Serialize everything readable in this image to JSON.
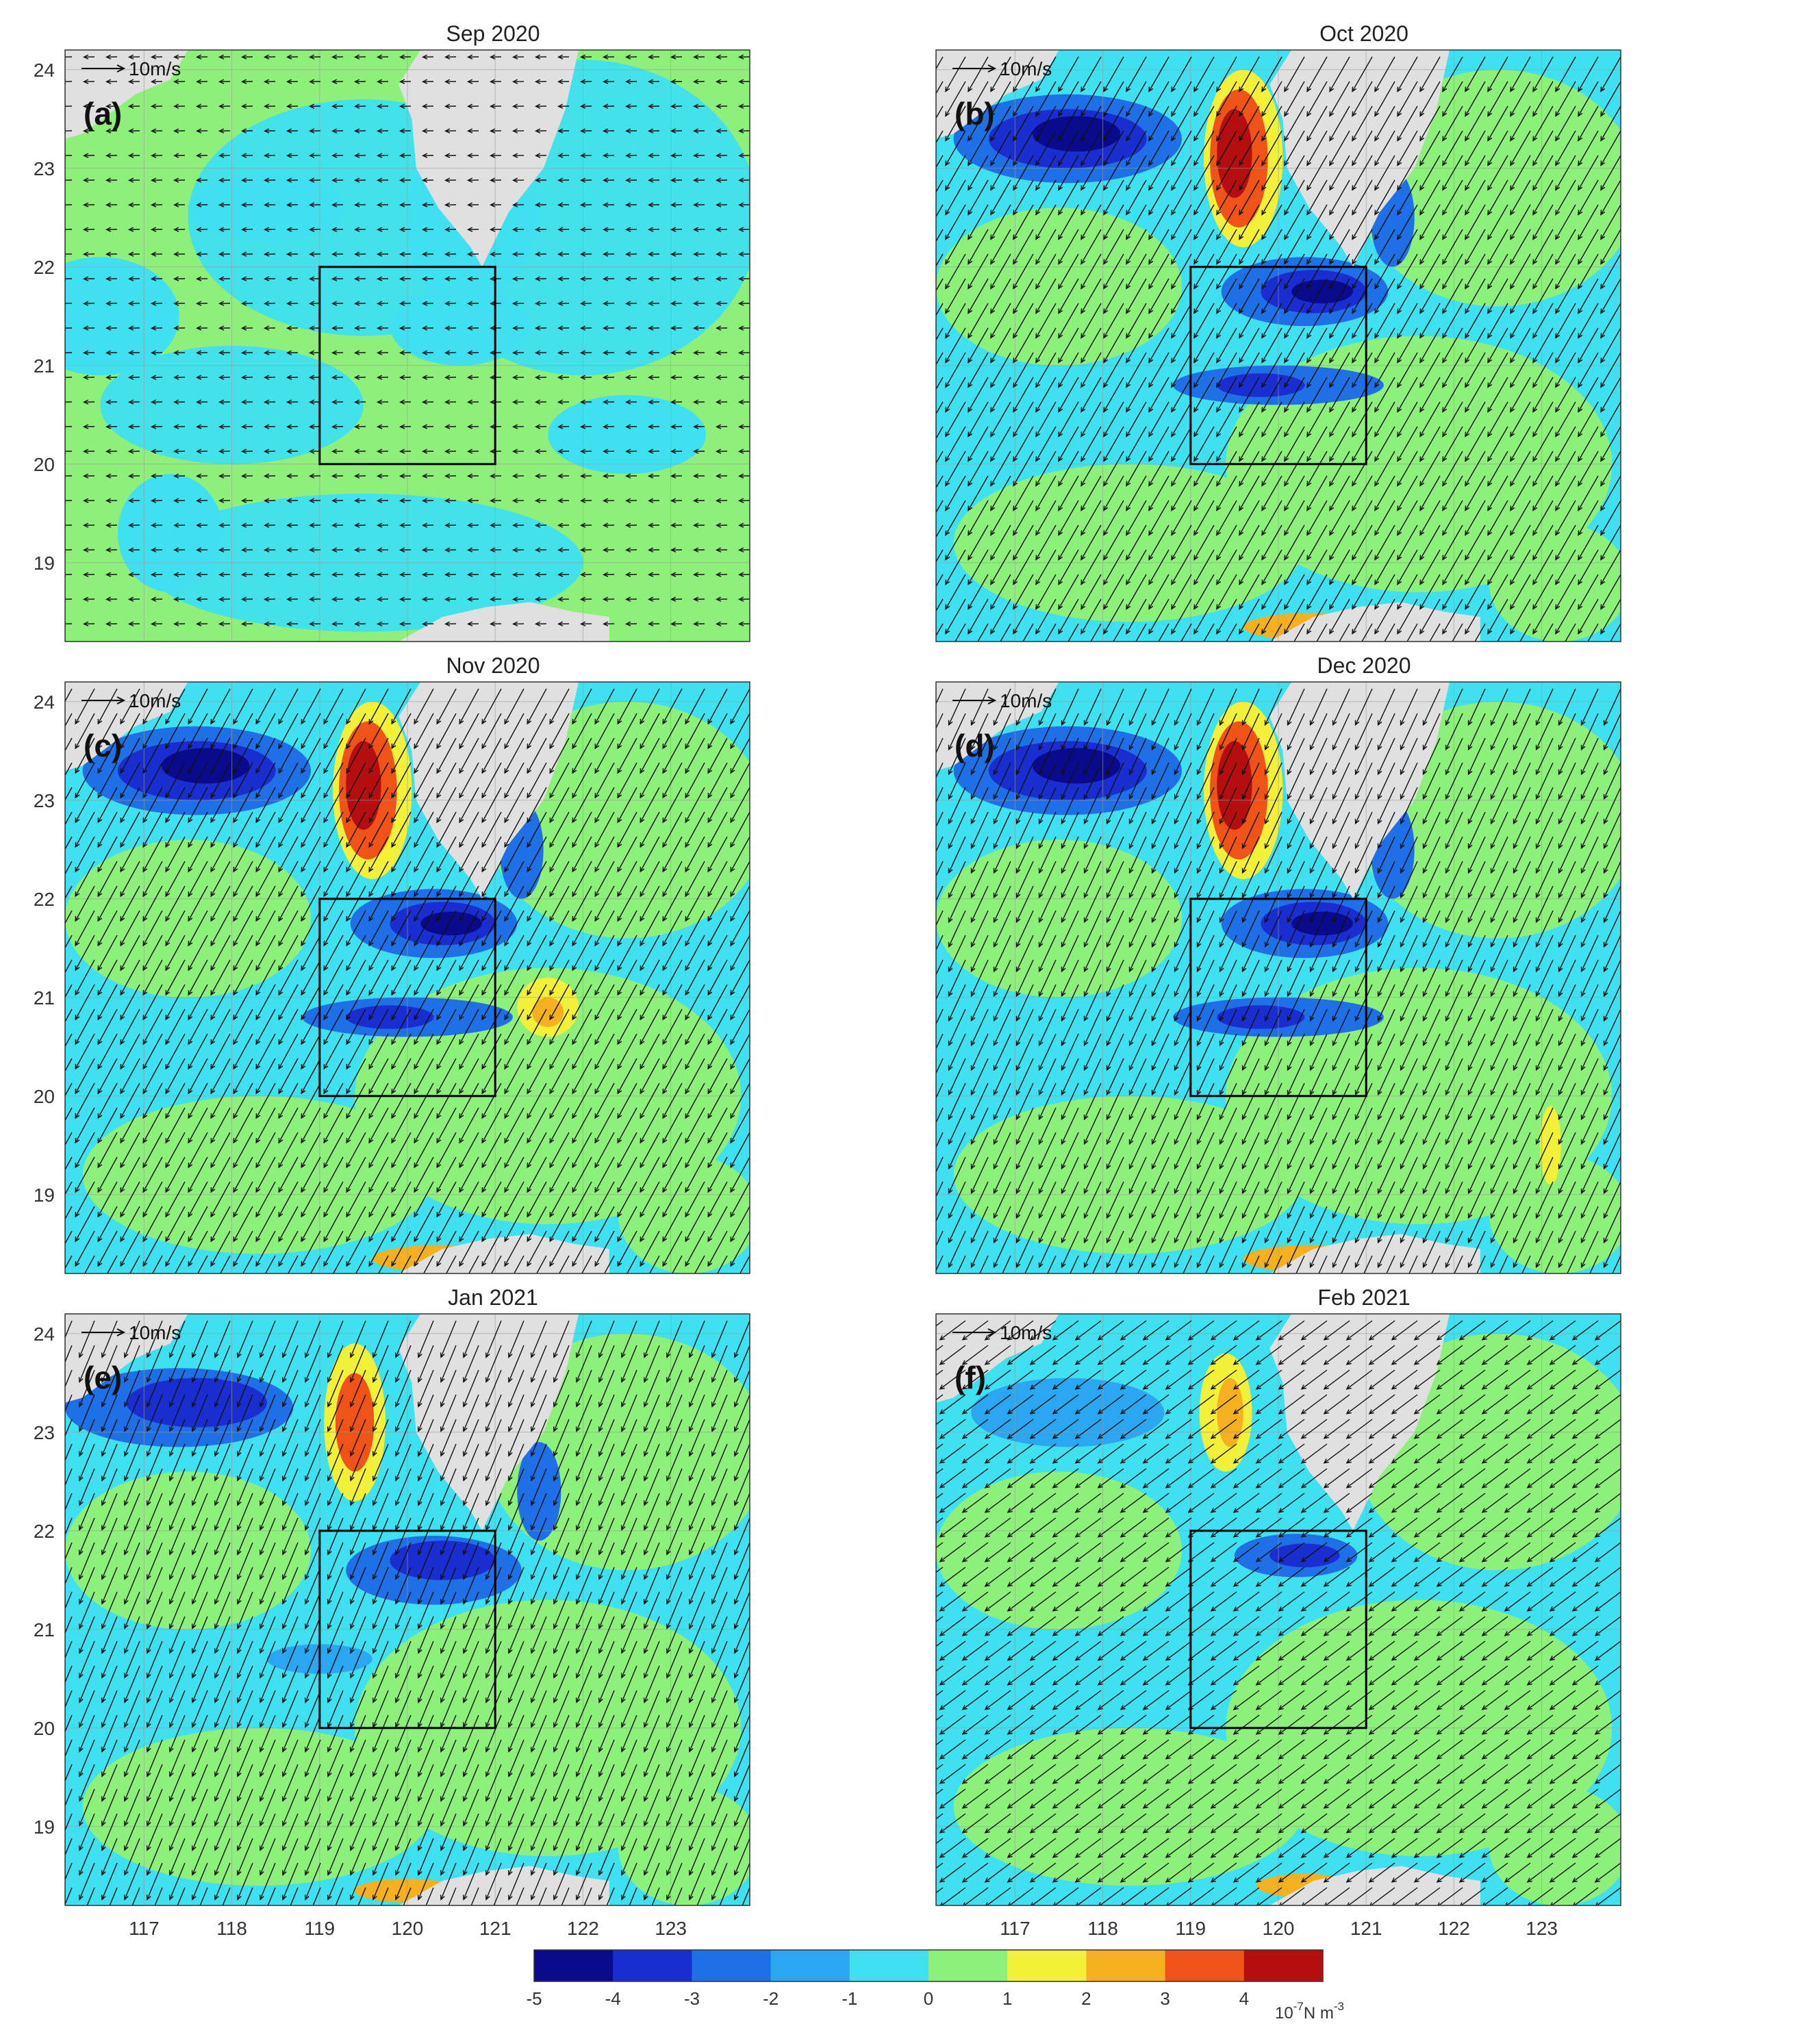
{
  "panels": [
    {
      "tag": "(a)",
      "title": "Sep 2020",
      "vector_ref": "10m/s",
      "wind": {
        "u": -1.0,
        "v": -0.02,
        "scale": 0.55
      }
    },
    {
      "tag": "(b)",
      "title": "Oct 2020",
      "vector_ref": "10m/s",
      "wind": {
        "u": -0.5,
        "v": -0.87,
        "scale": 1.0
      }
    },
    {
      "tag": "(c)",
      "title": "Nov 2020",
      "vector_ref": "10m/s",
      "wind": {
        "u": -0.48,
        "v": -0.88,
        "scale": 1.0
      }
    },
    {
      "tag": "(d)",
      "title": "Dec 2020",
      "vector_ref": "10m/s",
      "wind": {
        "u": -0.42,
        "v": -0.91,
        "scale": 1.0
      }
    },
    {
      "tag": "(e)",
      "title": "Jan 2021",
      "vector_ref": "10m/s",
      "wind": {
        "u": -0.38,
        "v": -0.92,
        "scale": 1.0
      }
    },
    {
      "tag": "(f)",
      "title": "Feb 2021",
      "vector_ref": "10m/s",
      "wind": {
        "u": -0.8,
        "v": -0.6,
        "scale": 0.8
      }
    }
  ],
  "map_extent": {
    "lon": [
      116.1,
      123.9
    ],
    "lat": [
      18.2,
      24.2
    ]
  },
  "lon_ticks": [
    "117",
    "118",
    "119",
    "120",
    "121",
    "122",
    "123"
  ],
  "lat_ticks": [
    "19",
    "20",
    "21",
    "22",
    "23",
    "24"
  ],
  "study_box": {
    "lon": [
      119,
      121
    ],
    "lat": [
      20,
      22
    ]
  },
  "colorbar": {
    "ticks": [
      "-5",
      "-4",
      "-3",
      "-2",
      "-1",
      "0",
      "1",
      "2",
      "3",
      "4"
    ],
    "unit": "10",
    "unit_exp": "-7",
    "unit_suffix": "N m",
    "unit_suffix_exp": "-3",
    "range": [
      -5,
      5
    ],
    "colors": [
      "#0a0a8c",
      "#1a2ed0",
      "#1f6fe6",
      "#2aa7f0",
      "#3fe0f0",
      "#8df07a",
      "#f3f03a",
      "#f5b020",
      "#ef5318",
      "#b50e10"
    ]
  },
  "colors": {
    "land": "#e0e0e0",
    "ocean_neg": "#46ece3",
    "ocean_pos": "#8ef07a",
    "arrow": "#111111",
    "box": "#000000"
  }
}
